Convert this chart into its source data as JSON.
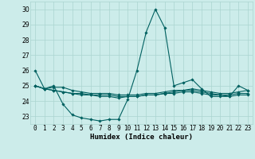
{
  "title": "",
  "xlabel": "Humidex (Indice chaleur)",
  "ylabel": "",
  "background_color": "#ccecea",
  "grid_color": "#aad4d0",
  "line_color": "#006060",
  "x": [
    0,
    1,
    2,
    3,
    4,
    5,
    6,
    7,
    8,
    9,
    10,
    11,
    12,
    13,
    14,
    15,
    16,
    17,
    18,
    19,
    20,
    21,
    22,
    23
  ],
  "series": [
    [
      26.0,
      24.8,
      25.0,
      23.8,
      23.1,
      22.9,
      22.8,
      22.7,
      22.8,
      22.8,
      24.1,
      26.0,
      28.5,
      30.0,
      28.8,
      25.0,
      25.2,
      25.4,
      24.8,
      24.3,
      24.3,
      24.3,
      25.0,
      24.7
    ],
    [
      25.0,
      24.8,
      24.9,
      24.9,
      24.7,
      24.6,
      24.5,
      24.5,
      24.5,
      24.4,
      24.4,
      24.4,
      24.5,
      24.5,
      24.6,
      24.7,
      24.7,
      24.8,
      24.7,
      24.6,
      24.5,
      24.5,
      24.6,
      24.7
    ],
    [
      25.0,
      24.8,
      24.7,
      24.6,
      24.5,
      24.5,
      24.4,
      24.4,
      24.4,
      24.3,
      24.3,
      24.3,
      24.4,
      24.4,
      24.5,
      24.6,
      24.7,
      24.7,
      24.6,
      24.5,
      24.4,
      24.4,
      24.5,
      24.5
    ],
    [
      25.0,
      24.8,
      24.7,
      24.6,
      24.5,
      24.4,
      24.4,
      24.3,
      24.3,
      24.2,
      24.3,
      24.3,
      24.4,
      24.4,
      24.5,
      24.5,
      24.6,
      24.6,
      24.5,
      24.4,
      24.4,
      24.3,
      24.4,
      24.4
    ]
  ],
  "ylim": [
    22.5,
    30.5
  ],
  "yticks": [
    23,
    24,
    25,
    26,
    27,
    28,
    29,
    30
  ],
  "xtick_labels": [
    "0",
    "1",
    "2",
    "3",
    "4",
    "5",
    "6",
    "7",
    "8",
    "9",
    "10",
    "11",
    "12",
    "13",
    "14",
    "15",
    "16",
    "17",
    "18",
    "19",
    "20",
    "21",
    "22",
    "23"
  ],
  "marker": "D",
  "markersize": 1.8,
  "linewidth": 0.8,
  "tick_fontsize": 5.5,
  "xlabel_fontsize": 6.5
}
